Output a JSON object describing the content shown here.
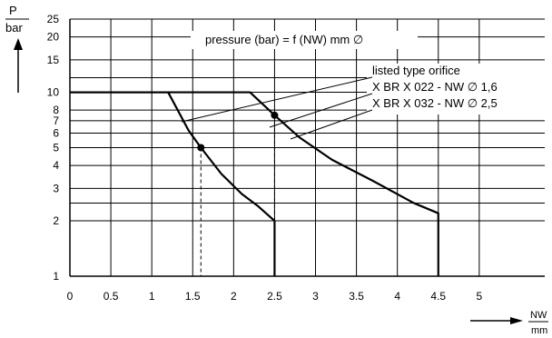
{
  "chart_data": {
    "type": "line",
    "title": "pressure (bar) = f (NW) mm ∅",
    "xlabel": {
      "top": "NW",
      "bottom": "mm"
    },
    "ylabel": {
      "top": "P",
      "bottom": "bar"
    },
    "x_ticks": [
      "0",
      "0.5",
      "1",
      "1.5",
      "2",
      "2.5",
      "3",
      "3.5",
      "4",
      "4.5",
      "5"
    ],
    "x_tick_values": [
      0,
      0.5,
      1,
      1.5,
      2,
      2.5,
      3,
      3.5,
      4,
      4.5,
      5
    ],
    "y_ticks": [
      "1",
      "2",
      "3",
      "4",
      "5",
      "6",
      "7",
      "8",
      "10",
      "15",
      "20",
      "25"
    ],
    "y_tick_values": [
      1,
      2,
      3,
      4,
      5,
      6,
      7,
      8,
      10,
      15,
      20,
      25
    ],
    "xlim": [
      0,
      5.8
    ],
    "ylim": [
      1,
      25
    ],
    "y_scale": "log",
    "grid": true,
    "legend_title": "listed type orifice",
    "series": [
      {
        "name": "X BR X 022 - NW ∅ 1,6",
        "x": [
          0,
          1.2,
          1.45,
          1.6,
          1.85,
          2.1,
          2.3,
          2.5,
          2.5
        ],
        "y": [
          10,
          10,
          6.2,
          5.0,
          3.6,
          2.8,
          2.4,
          2.0,
          1
        ]
      },
      {
        "name": "X BR X 032 - NW ∅ 2,5",
        "x": [
          0,
          2.2,
          2.5,
          2.8,
          3.2,
          3.7,
          4.2,
          4.5,
          4.5
        ],
        "y": [
          10,
          10,
          7.5,
          5.7,
          4.3,
          3.3,
          2.5,
          2.2,
          1
        ]
      }
    ],
    "markers": [
      {
        "x": 1.6,
        "y": 5.0
      },
      {
        "x": 2.5,
        "y": 7.5
      }
    ]
  }
}
